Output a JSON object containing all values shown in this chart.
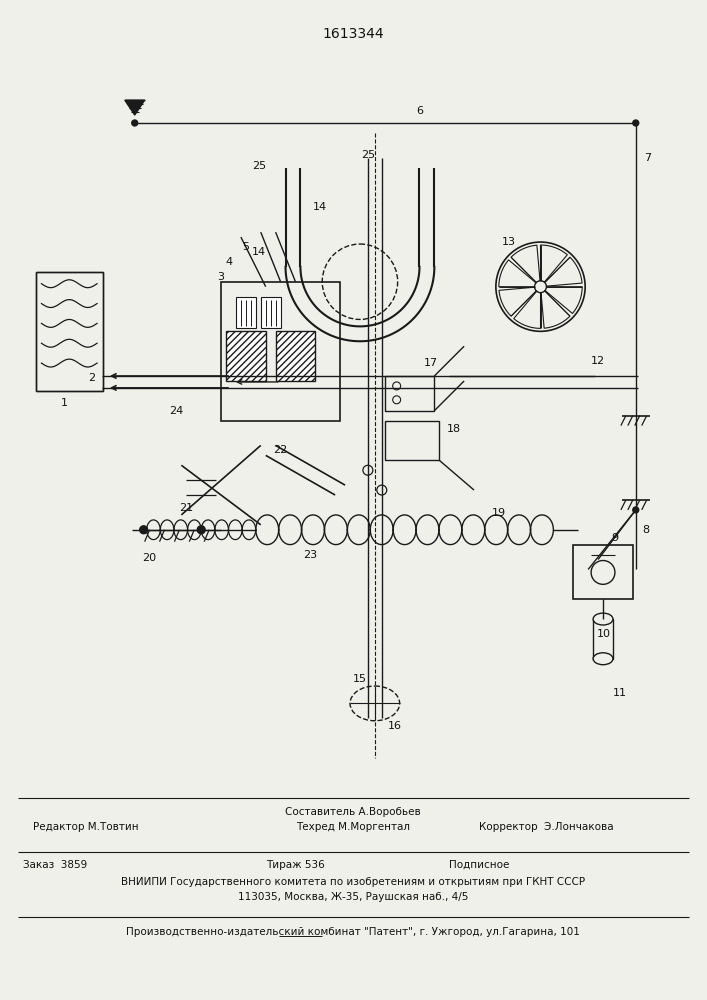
{
  "title": "1613344",
  "bg_color": "#f0f0eb",
  "line_color": "#1a1a1a",
  "text_color": "#111111",
  "footer_line1_left": "Редактор М.Товтин",
  "footer_line1_center_top": "Составитель А.Воробьев",
  "footer_line1_center_bot": "Техред М.Моргентал",
  "footer_line1_right": "Корректор  Э.Лончакова",
  "footer_line2_left": "Заказ  3859",
  "footer_line2_center": "Тираж 536",
  "footer_line2_right": "Подписное",
  "footer_line3": "ВНИИПИ Государственного комитета по изобретениям и открытиям при ГКНТ СССР",
  "footer_line4": "113035, Москва, Ж-35, Раушская наб., 4/5",
  "footer_line5": "Производственно-издательский комбинат \"Патент\", г. Ужгород, ул.Гагарина, 101"
}
